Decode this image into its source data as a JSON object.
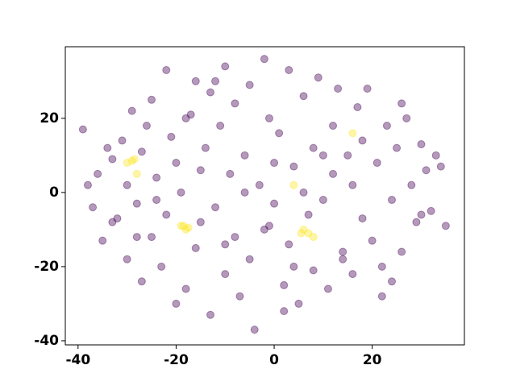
{
  "chart_data": {
    "type": "scatter",
    "xlim": [
      -42.6,
      38.8
    ],
    "ylim": [
      -41.1,
      39.3
    ],
    "xticks": [
      -40,
      -20,
      0,
      20
    ],
    "yticks": [
      -40,
      -20,
      0,
      20
    ],
    "series": [
      {
        "color": "#440154",
        "alpha": 0.4,
        "x": [
          -39,
          -38,
          -37,
          -36,
          -35,
          -34,
          -33,
          -32,
          -31,
          -30,
          -30,
          -29,
          -28,
          -27,
          -27,
          -26,
          -25,
          -25,
          -24,
          -23,
          -22,
          -22,
          -21,
          -20,
          -20,
          -19,
          -18,
          -17,
          -16,
          -16,
          -15,
          -14,
          -13,
          -13,
          -12,
          -11,
          -10,
          -10,
          -9,
          -8,
          -8,
          -7,
          -6,
          -5,
          -5,
          -4,
          -3,
          -2,
          -1,
          -1,
          0,
          1,
          2,
          3,
          3,
          4,
          5,
          6,
          7,
          8,
          8,
          9,
          10,
          11,
          12,
          12,
          13,
          14,
          15,
          16,
          17,
          18,
          18,
          19,
          20,
          21,
          22,
          23,
          24,
          25,
          26,
          27,
          28,
          29,
          30,
          31,
          32,
          33,
          34,
          35,
          -24,
          -10,
          2,
          14,
          26,
          -33,
          -15,
          6,
          22,
          -6,
          -2,
          10,
          -18,
          30,
          -28,
          0,
          4,
          -12,
          16,
          24
        ],
        "values": [
          17,
          2,
          -4,
          5,
          -13,
          12,
          9,
          -7,
          14,
          -18,
          2,
          22,
          -3,
          11,
          -24,
          18,
          -12,
          25,
          4,
          -20,
          33,
          -6,
          15,
          -30,
          8,
          0,
          -26,
          21,
          -15,
          30,
          -8,
          12,
          -33,
          27,
          -4,
          18,
          -22,
          34,
          5,
          -12,
          24,
          -28,
          10,
          -18,
          29,
          -37,
          2,
          36,
          -9,
          20,
          -3,
          16,
          -25,
          33,
          -14,
          7,
          -30,
          26,
          -6,
          12,
          -21,
          31,
          -2,
          -26,
          18,
          5,
          28,
          -16,
          10,
          -22,
          23,
          -7,
          14,
          28,
          -13,
          8,
          -20,
          18,
          -2,
          12,
          -16,
          20,
          2,
          -8,
          13,
          6,
          -5,
          10,
          7,
          -9,
          -2,
          -14,
          -32,
          -18,
          24,
          -8,
          6,
          0,
          -28,
          0,
          -10,
          10,
          20,
          -6,
          -12,
          8,
          -20,
          30,
          2,
          -24
        ]
      },
      {
        "color": "#fde725",
        "alpha": 0.4,
        "x": [
          -30,
          -29,
          -28.5,
          -28,
          -19,
          -18.5,
          -18,
          -17.5,
          4,
          5.5,
          6,
          7,
          8,
          16
        ],
        "values": [
          8,
          8.5,
          9,
          5,
          -9,
          -9,
          -10,
          -9.5,
          2,
          -11,
          -10,
          -11,
          -12,
          16
        ]
      }
    ]
  }
}
